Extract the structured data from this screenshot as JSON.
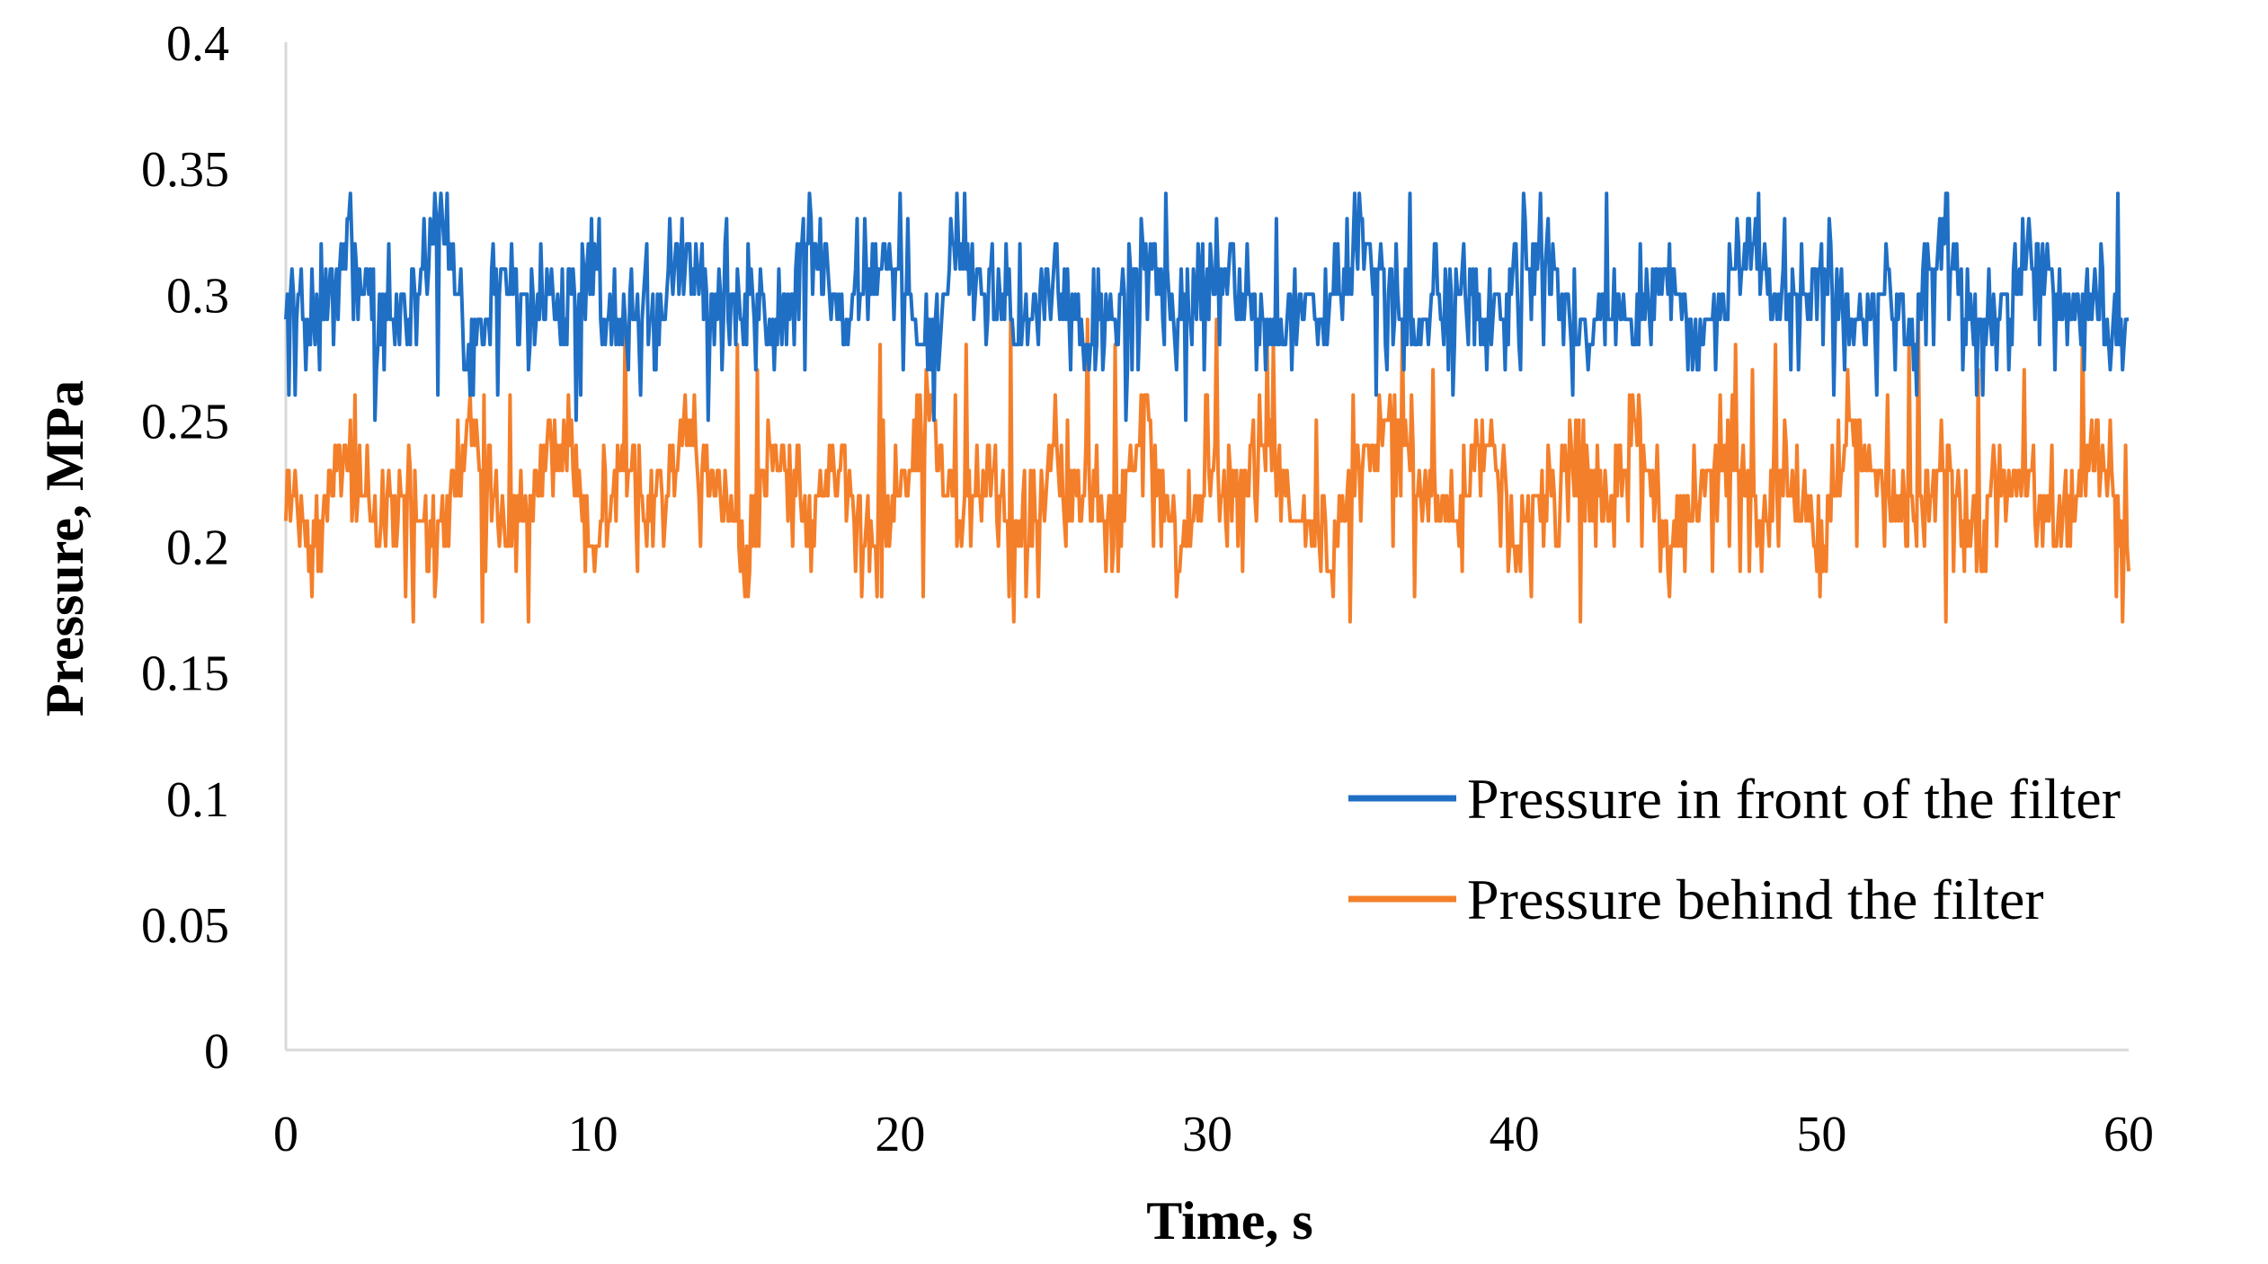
{
  "chart_data": {
    "type": "line",
    "title": "",
    "xlabel": "Time, s",
    "ylabel": "Pressure, MPa",
    "xlim": [
      0,
      60
    ],
    "ylim": [
      0,
      0.4
    ],
    "x_ticks": [
      "0",
      "10",
      "20",
      "30",
      "40",
      "50",
      "60"
    ],
    "y_ticks": [
      "0",
      "0.05",
      "0.1",
      "0.15",
      "0.2",
      "0.25",
      "0.3",
      "0.35",
      "0.4"
    ],
    "grid": false,
    "legend_position": "right",
    "series": [
      {
        "name": "Pressure in front of the filter",
        "color": "#1f6fc5",
        "x": [
          0,
          1,
          2,
          3,
          4,
          5,
          6,
          7,
          8,
          9,
          10,
          11,
          12,
          13,
          14,
          15,
          16,
          17,
          18,
          19,
          20,
          21,
          22,
          23,
          24,
          25,
          26,
          27,
          28,
          29,
          30,
          31,
          32,
          33,
          34,
          35,
          36,
          37,
          38,
          39,
          40,
          41,
          42,
          43,
          44,
          45,
          46,
          47,
          48,
          49,
          50,
          51,
          52,
          53,
          54,
          55,
          56,
          57,
          58,
          59,
          60
        ],
        "values": [
          0.3,
          0.28,
          0.32,
          0.29,
          0.3,
          0.33,
          0.28,
          0.31,
          0.29,
          0.3,
          0.32,
          0.28,
          0.3,
          0.31,
          0.29,
          0.3,
          0.28,
          0.32,
          0.29,
          0.31,
          0.3,
          0.28,
          0.32,
          0.3,
          0.29,
          0.31,
          0.28,
          0.3,
          0.32,
          0.29,
          0.3,
          0.31,
          0.28,
          0.3,
          0.29,
          0.32,
          0.3,
          0.28,
          0.31,
          0.29,
          0.3,
          0.32,
          0.28,
          0.3,
          0.29,
          0.31,
          0.28,
          0.3,
          0.32,
          0.29,
          0.31,
          0.28,
          0.3,
          0.29,
          0.32,
          0.28,
          0.3,
          0.31,
          0.29,
          0.3,
          0.28
        ],
        "range_min": 0.25,
        "range_max": 0.34
      },
      {
        "name": "Pressure behind the filter",
        "color": "#f47f2a",
        "x": [
          0,
          1,
          2,
          3,
          4,
          5,
          6,
          7,
          8,
          9,
          10,
          11,
          12,
          13,
          14,
          15,
          16,
          17,
          18,
          19,
          20,
          21,
          22,
          23,
          24,
          25,
          26,
          27,
          28,
          29,
          30,
          31,
          32,
          33,
          34,
          35,
          36,
          37,
          38,
          39,
          40,
          41,
          42,
          43,
          44,
          45,
          46,
          47,
          48,
          49,
          50,
          51,
          52,
          53,
          54,
          55,
          56,
          57,
          58,
          59,
          60
        ],
        "values": [
          0.22,
          0.2,
          0.24,
          0.21,
          0.23,
          0.2,
          0.25,
          0.21,
          0.22,
          0.24,
          0.2,
          0.23,
          0.21,
          0.25,
          0.22,
          0.2,
          0.24,
          0.21,
          0.23,
          0.2,
          0.22,
          0.25,
          0.21,
          0.23,
          0.2,
          0.24,
          0.22,
          0.21,
          0.25,
          0.2,
          0.23,
          0.22,
          0.24,
          0.21,
          0.2,
          0.23,
          0.25,
          0.22,
          0.21,
          0.24,
          0.2,
          0.22,
          0.23,
          0.21,
          0.25,
          0.2,
          0.22,
          0.24,
          0.21,
          0.23,
          0.2,
          0.25,
          0.22,
          0.21,
          0.24,
          0.2,
          0.23,
          0.22,
          0.21,
          0.24,
          0.2
        ],
        "range_min": 0.17,
        "range_max": 0.29
      }
    ]
  }
}
